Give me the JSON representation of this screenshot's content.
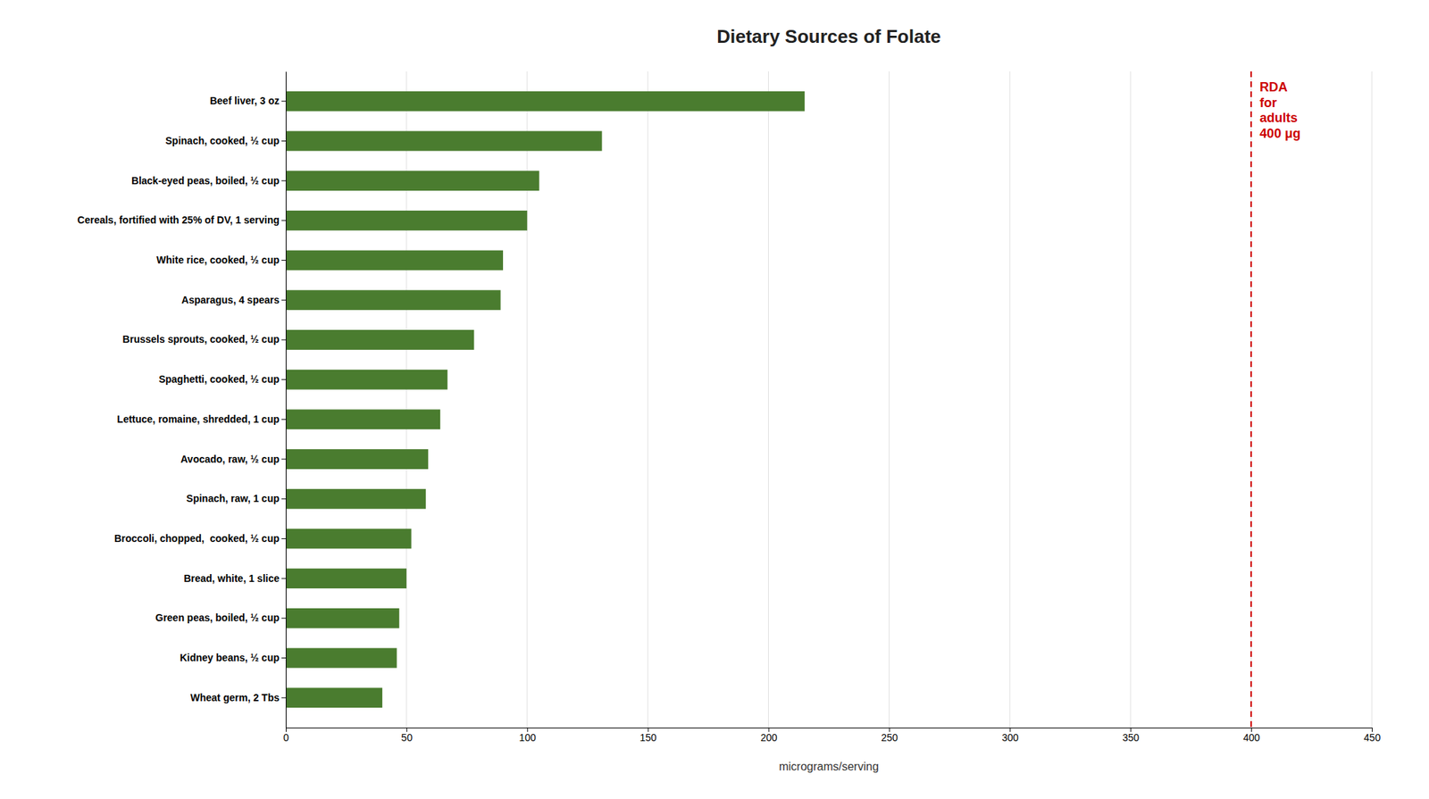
{
  "chart_data": {
    "type": "bar",
    "orientation": "horizontal",
    "title": "Dietary Sources of Folate",
    "categories": [
      "Beef liver, 3 oz",
      "Spinach, cooked, ½ cup",
      "Black-eyed peas, boiled, ½ cup",
      "Cereals, fortified with 25% of DV, 1 serving",
      "White rice, cooked, ½ cup",
      "Asparagus, 4 spears",
      "Brussels sprouts, cooked, ½ cup",
      "Spaghetti, cooked, ½ cup",
      "Lettuce, romaine, shredded, 1 cup",
      "Avocado, raw, ½ cup",
      "Spinach, raw, 1 cup",
      "Broccoli, chopped,  cooked, ½ cup",
      "Bread, white, 1 slice",
      "Green peas, boiled, ½ cup",
      "Kidney beans, ½ cup",
      "Wheat germ, 2 Tbs"
    ],
    "values": [
      215,
      131,
      105,
      100,
      90,
      89,
      78,
      67,
      64,
      59,
      58,
      52,
      50,
      47,
      46,
      40
    ],
    "color": "#4a7c2f",
    "xlabel": "micrograms/serving",
    "xlim": [
      0,
      450
    ],
    "xticks": [
      0,
      50,
      100,
      150,
      200,
      250,
      300,
      350,
      400,
      450
    ],
    "grid": true,
    "annotations": [
      {
        "x": 400,
        "lines": [
          "RDA",
          "for",
          "adults",
          "400 μg"
        ],
        "color": "#cc0000",
        "line_style": "dashed"
      }
    ]
  }
}
